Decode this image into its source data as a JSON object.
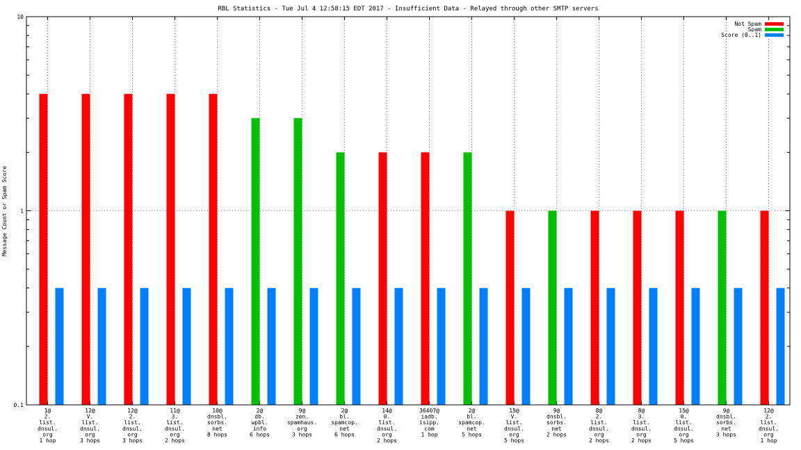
{
  "chart_data": {
    "type": "bar",
    "title": "RBL Statistics - Tue Jul  4 12:58:15 EDT 2017 - Insufficient Data - Relayed through other SMTP servers",
    "xlabel": "",
    "ylabel": "Message Count or Spam Score",
    "yscale": "log",
    "ylim": [
      0.1,
      10
    ],
    "yticks": [
      "0.1",
      "1",
      "10"
    ],
    "grid": true,
    "legend_position": "top-right",
    "categories": [
      [
        "1@",
        "2.",
        "list.",
        "dnsul.",
        "org",
        "1 hop"
      ],
      [
        "12@",
        "V.",
        "list.",
        "dnsul.",
        "org",
        "3 hops"
      ],
      [
        "12@",
        "2.",
        "list.",
        "dnsul.",
        "org",
        "3 hops"
      ],
      [
        "11@",
        "3.",
        "list.",
        "dnsul.",
        "org",
        "2 hops"
      ],
      [
        "10@",
        "dnsbl.",
        "sorbs.",
        "net",
        "8 hops"
      ],
      [
        "2@",
        "db.",
        "wpbl.",
        "info",
        "6 hops"
      ],
      [
        "9@",
        "zen.",
        "spamhaus.",
        "org",
        "3 hops"
      ],
      [
        "2@",
        "bl.",
        "spamcop.",
        "net",
        "6 hops"
      ],
      [
        "14@",
        "0.",
        "list.",
        "dnsul.",
        "org",
        "2 hops"
      ],
      [
        "36407@",
        "iadb.",
        "isipp.",
        "com",
        "1 hop"
      ],
      [
        "2@",
        "bl.",
        "spamcop.",
        "net",
        "5 hops"
      ],
      [
        "15@",
        "V.",
        "list.",
        "dnsul.",
        "org",
        "5 hops"
      ],
      [
        "9@",
        "dnsbl.",
        "sorbs.",
        "net",
        "2 hops"
      ],
      [
        "8@",
        "2.",
        "list.",
        "dnsul.",
        "org",
        "2 hops"
      ],
      [
        "8@",
        "3.",
        "list.",
        "dnsul.",
        "org",
        "2 hops"
      ],
      [
        "15@",
        "0.",
        "list.",
        "dnsul.",
        "org",
        "5 hops"
      ],
      [
        "9@",
        "dnsbl.",
        "sorbs.",
        "net",
        "3 hops"
      ],
      [
        "12@",
        "2.",
        "list.",
        "dnsul.",
        "org",
        "1 hop"
      ]
    ],
    "series": [
      {
        "name": "Not Spam",
        "color": "#ff0000",
        "values": [
          4,
          4,
          4,
          4,
          4,
          null,
          null,
          null,
          2,
          2,
          null,
          1,
          null,
          1,
          1,
          1,
          null,
          1
        ]
      },
      {
        "name": "Spam",
        "color": "#00c000",
        "values": [
          null,
          null,
          null,
          null,
          null,
          3,
          3,
          2,
          null,
          null,
          2,
          null,
          1,
          null,
          null,
          null,
          1,
          null
        ]
      },
      {
        "name": "Score (0..1)",
        "color": "#0080ff",
        "values": [
          0.4,
          0.4,
          0.4,
          0.4,
          0.4,
          0.4,
          0.4,
          0.4,
          0.4,
          0.4,
          0.4,
          0.4,
          0.4,
          0.4,
          0.4,
          0.4,
          0.4,
          0.4
        ]
      }
    ]
  }
}
